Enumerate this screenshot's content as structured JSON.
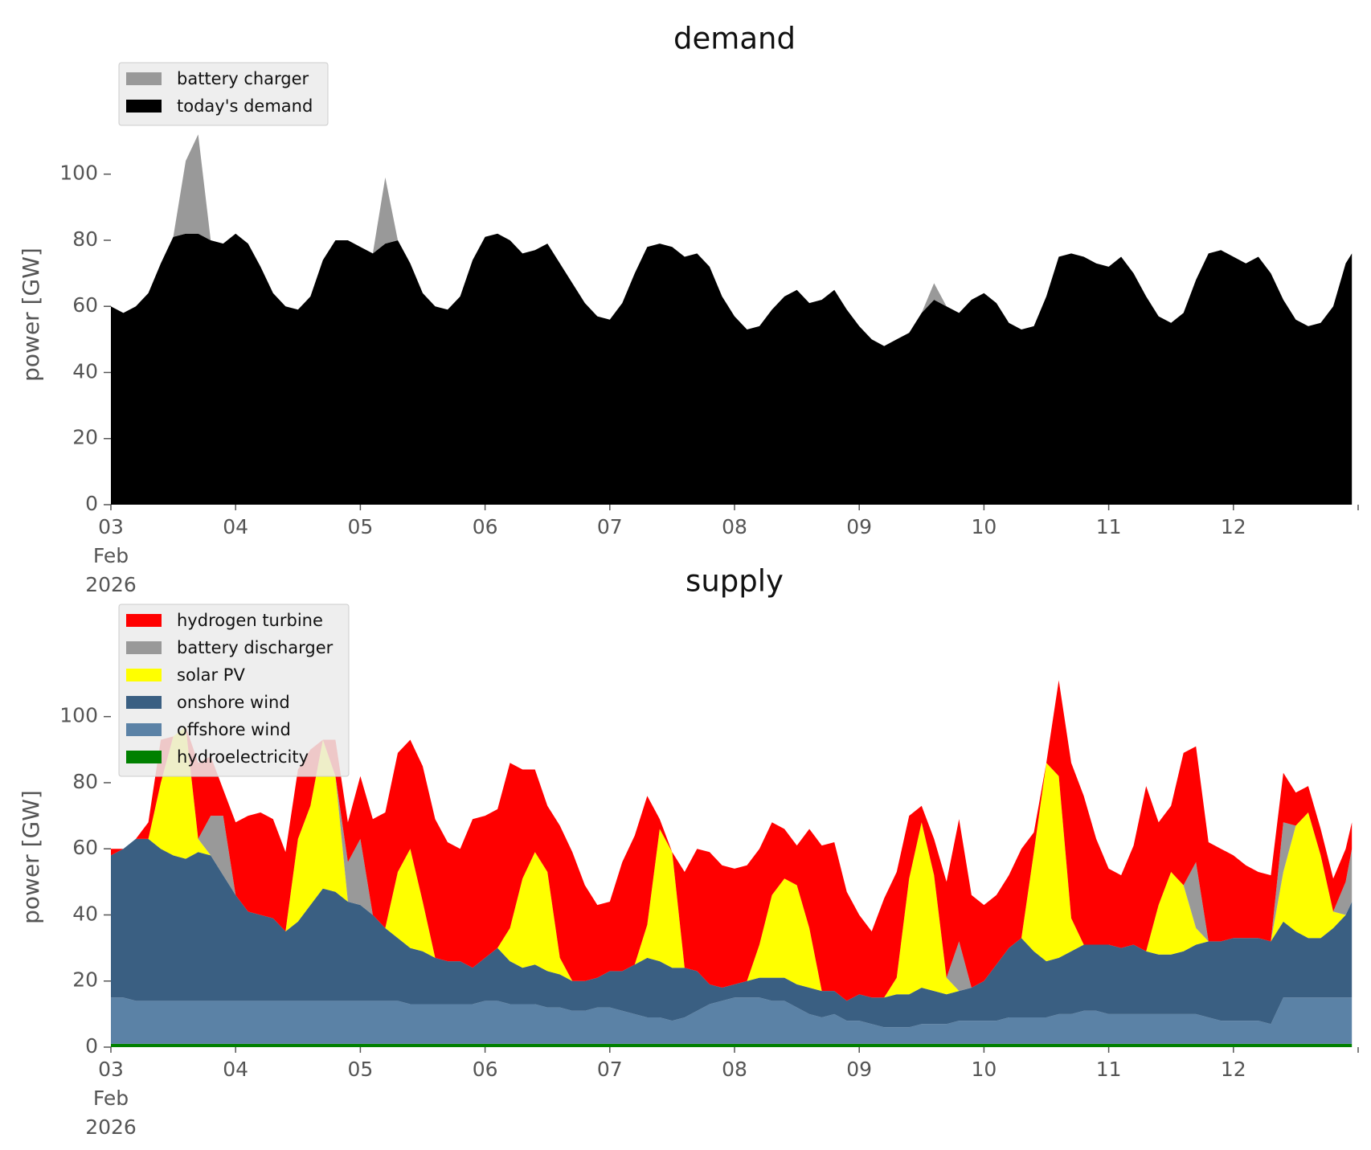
{
  "chart_data": [
    {
      "type": "area",
      "stacked": true,
      "title": "demand",
      "xlabel": "",
      "ylabel": "power [GW]",
      "ylim": [
        0,
        115
      ],
      "yticks": [
        0,
        20,
        40,
        60,
        80,
        100
      ],
      "xticks": [
        "03",
        "04",
        "05",
        "06",
        "07",
        "08",
        "09",
        "10",
        "11",
        "12"
      ],
      "xtick_sublabel": [
        "Feb",
        "2026"
      ],
      "x": [
        0,
        0.1,
        0.2,
        0.3,
        0.4,
        0.5,
        0.6,
        0.7,
        0.8,
        0.9,
        1,
        1.1,
        1.2,
        1.3,
        1.4,
        1.5,
        1.6,
        1.7,
        1.8,
        1.9,
        2,
        2.1,
        2.2,
        2.3,
        2.4,
        2.5,
        2.6,
        2.7,
        2.8,
        2.9,
        3,
        3.1,
        3.2,
        3.3,
        3.4,
        3.5,
        3.6,
        3.7,
        3.8,
        3.9,
        4,
        4.1,
        4.2,
        4.3,
        4.4,
        4.5,
        4.6,
        4.7,
        4.8,
        4.9,
        5,
        5.1,
        5.2,
        5.3,
        5.4,
        5.5,
        5.6,
        5.7,
        5.8,
        5.9,
        6,
        6.1,
        6.2,
        6.3,
        6.4,
        6.5,
        6.6,
        6.7,
        6.8,
        6.9,
        7,
        7.1,
        7.2,
        7.3,
        7.4,
        7.5,
        7.6,
        7.7,
        7.8,
        7.9,
        8,
        8.1,
        8.2,
        8.3,
        8.4,
        8.5,
        8.6,
        8.7,
        8.8,
        8.9,
        9,
        9.1,
        9.2,
        9.3,
        9.4,
        9.5,
        9.6,
        9.7,
        9.8,
        9.9,
        9.95
      ],
      "series": [
        {
          "name": "today's demand",
          "color": "#000000",
          "values": [
            60,
            58,
            60,
            64,
            73,
            81,
            82,
            82,
            80,
            79,
            82,
            79,
            72,
            64,
            60,
            59,
            63,
            74,
            80,
            80,
            78,
            76,
            79,
            80,
            73,
            64,
            60,
            59,
            63,
            74,
            81,
            82,
            80,
            76,
            77,
            79,
            73,
            67,
            61,
            57,
            56,
            61,
            70,
            78,
            79,
            78,
            75,
            76,
            72,
            63,
            57,
            53,
            54,
            59,
            63,
            65,
            61,
            62,
            65,
            59,
            54,
            50,
            48,
            50,
            52,
            58,
            62,
            60,
            58,
            62,
            64,
            61,
            55,
            53,
            54,
            63,
            75,
            76,
            75,
            73,
            72,
            75,
            70,
            63,
            57,
            55,
            58,
            68,
            76,
            77,
            75,
            73,
            75,
            70,
            62,
            56,
            54,
            55,
            60,
            73,
            76
          ]
        },
        {
          "name": "battery charger",
          "color": "#999999",
          "values": [
            0,
            0,
            0,
            0,
            0,
            0,
            22,
            30,
            0,
            0,
            0,
            0,
            0,
            0,
            0,
            0,
            0,
            0,
            0,
            0,
            0,
            0,
            20,
            0,
            0,
            0,
            0,
            0,
            0,
            0,
            0,
            0,
            0,
            0,
            0,
            0,
            0,
            0,
            0,
            0,
            0,
            0,
            0,
            0,
            0,
            0,
            0,
            0,
            0,
            0,
            0,
            0,
            0,
            0,
            0,
            0,
            0,
            0,
            0,
            0,
            0,
            0,
            0,
            0,
            0,
            0,
            5,
            0,
            0,
            0,
            0,
            0,
            0,
            0,
            0,
            0,
            0,
            0,
            0,
            0,
            0,
            0,
            0,
            0,
            0,
            0,
            0,
            0,
            0,
            0,
            0,
            0,
            0,
            0,
            0,
            0,
            0,
            0,
            0,
            0,
            0
          ]
        }
      ],
      "legend": {
        "placement": "top-left",
        "entries": [
          "battery charger",
          "today's demand"
        ]
      }
    },
    {
      "type": "area",
      "stacked": true,
      "title": "supply",
      "xlabel": "",
      "ylabel": "power [GW]",
      "ylim": [
        0,
        115
      ],
      "yticks": [
        0,
        20,
        40,
        60,
        80,
        100
      ],
      "xticks": [
        "03",
        "04",
        "05",
        "06",
        "07",
        "08",
        "09",
        "10",
        "11",
        "12"
      ],
      "xtick_sublabel": [
        "Feb",
        "2026"
      ],
      "x": [
        0,
        0.1,
        0.2,
        0.3,
        0.4,
        0.5,
        0.6,
        0.7,
        0.8,
        0.9,
        1,
        1.1,
        1.2,
        1.3,
        1.4,
        1.5,
        1.6,
        1.7,
        1.8,
        1.9,
        2,
        2.1,
        2.2,
        2.3,
        2.4,
        2.5,
        2.6,
        2.7,
        2.8,
        2.9,
        3,
        3.1,
        3.2,
        3.3,
        3.4,
        3.5,
        3.6,
        3.7,
        3.8,
        3.9,
        4,
        4.1,
        4.2,
        4.3,
        4.4,
        4.5,
        4.6,
        4.7,
        4.8,
        4.9,
        5,
        5.1,
        5.2,
        5.3,
        5.4,
        5.5,
        5.6,
        5.7,
        5.8,
        5.9,
        6,
        6.1,
        6.2,
        6.3,
        6.4,
        6.5,
        6.6,
        6.7,
        6.8,
        6.9,
        7,
        7.1,
        7.2,
        7.3,
        7.4,
        7.5,
        7.6,
        7.7,
        7.8,
        7.9,
        8,
        8.1,
        8.2,
        8.3,
        8.4,
        8.5,
        8.6,
        8.7,
        8.8,
        8.9,
        9,
        9.1,
        9.2,
        9.3,
        9.4,
        9.5,
        9.6,
        9.7,
        9.8,
        9.9,
        9.95
      ],
      "series": [
        {
          "name": "hydroelectricity",
          "color": "#008000",
          "values": [
            1,
            1,
            1,
            1,
            1,
            1,
            1,
            1,
            1,
            1,
            1,
            1,
            1,
            1,
            1,
            1,
            1,
            1,
            1,
            1,
            1,
            1,
            1,
            1,
            1,
            1,
            1,
            1,
            1,
            1,
            1,
            1,
            1,
            1,
            1,
            1,
            1,
            1,
            1,
            1,
            1,
            1,
            1,
            1,
            1,
            1,
            1,
            1,
            1,
            1,
            1,
            1,
            1,
            1,
            1,
            1,
            1,
            1,
            1,
            1,
            1,
            1,
            1,
            1,
            1,
            1,
            1,
            1,
            1,
            1,
            1,
            1,
            1,
            1,
            1,
            1,
            1,
            1,
            1,
            1,
            1,
            1,
            1,
            1,
            1,
            1,
            1,
            1,
            1,
            1,
            1,
            1,
            1,
            1,
            1,
            1,
            1,
            1,
            1,
            1,
            1
          ]
        },
        {
          "name": "offshore wind",
          "color": "#5b82a6",
          "values": [
            14,
            14,
            13,
            13,
            13,
            13,
            13,
            13,
            13,
            13,
            13,
            13,
            13,
            13,
            13,
            13,
            13,
            13,
            13,
            13,
            13,
            13,
            13,
            13,
            12,
            12,
            12,
            12,
            12,
            12,
            13,
            13,
            12,
            12,
            12,
            11,
            11,
            10,
            10,
            11,
            11,
            10,
            9,
            8,
            8,
            7,
            8,
            10,
            12,
            13,
            14,
            14,
            14,
            13,
            13,
            11,
            9,
            8,
            9,
            7,
            7,
            6,
            5,
            5,
            5,
            6,
            6,
            6,
            7,
            7,
            7,
            7,
            8,
            8,
            8,
            8,
            9,
            9,
            10,
            10,
            9,
            9,
            9,
            9,
            9,
            9,
            9,
            9,
            8,
            7,
            7,
            7,
            7,
            6,
            14,
            14,
            14,
            14,
            14,
            14,
            14
          ]
        },
        {
          "name": "onshore wind",
          "color": "#3a5f82",
          "values": [
            43,
            45,
            49,
            49,
            46,
            44,
            43,
            45,
            44,
            38,
            32,
            27,
            26,
            25,
            21,
            24,
            29,
            34,
            33,
            30,
            29,
            26,
            22,
            19,
            17,
            16,
            14,
            13,
            13,
            11,
            13,
            16,
            13,
            11,
            12,
            11,
            10,
            9,
            9,
            9,
            11,
            12,
            15,
            18,
            17,
            16,
            15,
            12,
            6,
            4,
            4,
            5,
            6,
            7,
            7,
            7,
            8,
            8,
            7,
            6,
            8,
            8,
            9,
            10,
            10,
            11,
            10,
            9,
            9,
            10,
            12,
            17,
            21,
            24,
            20,
            17,
            17,
            19,
            20,
            20,
            21,
            20,
            21,
            19,
            18,
            18,
            19,
            21,
            23,
            24,
            25,
            25,
            25,
            25,
            23,
            20,
            18,
            18,
            21,
            25,
            29
          ]
        },
        {
          "name": "solar PV",
          "color": "#ffff00",
          "values": [
            0,
            0,
            0,
            0,
            20,
            36,
            40,
            4,
            0,
            0,
            0,
            0,
            0,
            0,
            0,
            25,
            30,
            45,
            35,
            0,
            0,
            0,
            0,
            20,
            30,
            15,
            0,
            0,
            0,
            0,
            0,
            0,
            10,
            27,
            34,
            30,
            5,
            0,
            0,
            0,
            0,
            0,
            0,
            10,
            40,
            35,
            0,
            0,
            0,
            0,
            0,
            0,
            10,
            25,
            30,
            30,
            18,
            0,
            0,
            0,
            0,
            0,
            0,
            5,
            35,
            50,
            35,
            5,
            0,
            0,
            0,
            0,
            0,
            0,
            30,
            60,
            55,
            10,
            0,
            0,
            0,
            0,
            0,
            0,
            15,
            25,
            20,
            5,
            0,
            0,
            0,
            0,
            0,
            0,
            15,
            32,
            38,
            25,
            5,
            0,
            0
          ]
        },
        {
          "name": "battery discharger",
          "color": "#999999",
          "values": [
            0,
            0,
            0,
            0,
            0,
            0,
            0,
            0,
            12,
            18,
            0,
            0,
            0,
            0,
            0,
            0,
            0,
            0,
            0,
            12,
            20,
            0,
            0,
            0,
            0,
            0,
            0,
            0,
            0,
            0,
            0,
            0,
            0,
            0,
            0,
            0,
            0,
            0,
            0,
            0,
            0,
            0,
            0,
            0,
            0,
            0,
            0,
            0,
            0,
            0,
            0,
            0,
            0,
            0,
            0,
            0,
            0,
            0,
            0,
            0,
            0,
            0,
            0,
            0,
            0,
            0,
            0,
            0,
            15,
            0,
            0,
            0,
            0,
            0,
            0,
            0,
            0,
            0,
            0,
            0,
            0,
            0,
            0,
            0,
            0,
            0,
            0,
            20,
            0,
            0,
            0,
            0,
            0,
            0,
            15,
            0,
            0,
            0,
            0,
            10,
            16
          ]
        },
        {
          "name": "hydrogen turbine",
          "color": "#ff0000",
          "values": [
            2,
            0,
            0,
            5,
            13,
            0,
            0,
            23,
            18,
            8,
            22,
            29,
            31,
            30,
            24,
            21,
            17,
            0,
            11,
            12,
            19,
            29,
            35,
            36,
            33,
            41,
            42,
            36,
            34,
            45,
            43,
            42,
            50,
            33,
            25,
            20,
            40,
            39,
            29,
            22,
            21,
            33,
            39,
            39,
            3,
            0,
            29,
            37,
            40,
            37,
            35,
            35,
            29,
            22,
            15,
            12,
            30,
            44,
            45,
            33,
            24,
            20,
            30,
            32,
            19,
            5,
            11,
            29,
            37,
            28,
            23,
            21,
            22,
            27,
            6,
            0,
            29,
            47,
            45,
            32,
            23,
            22,
            30,
            50,
            25,
            20,
            40,
            35,
            30,
            28,
            25,
            22,
            20,
            20,
            15,
            10,
            8,
            8,
            10,
            10,
            8
          ]
        }
      ],
      "legend": {
        "placement": "top-left",
        "entries": [
          "hydrogen turbine",
          "battery discharger",
          "solar PV",
          "onshore wind",
          "offshore wind",
          "hydroelectricity"
        ]
      }
    }
  ]
}
